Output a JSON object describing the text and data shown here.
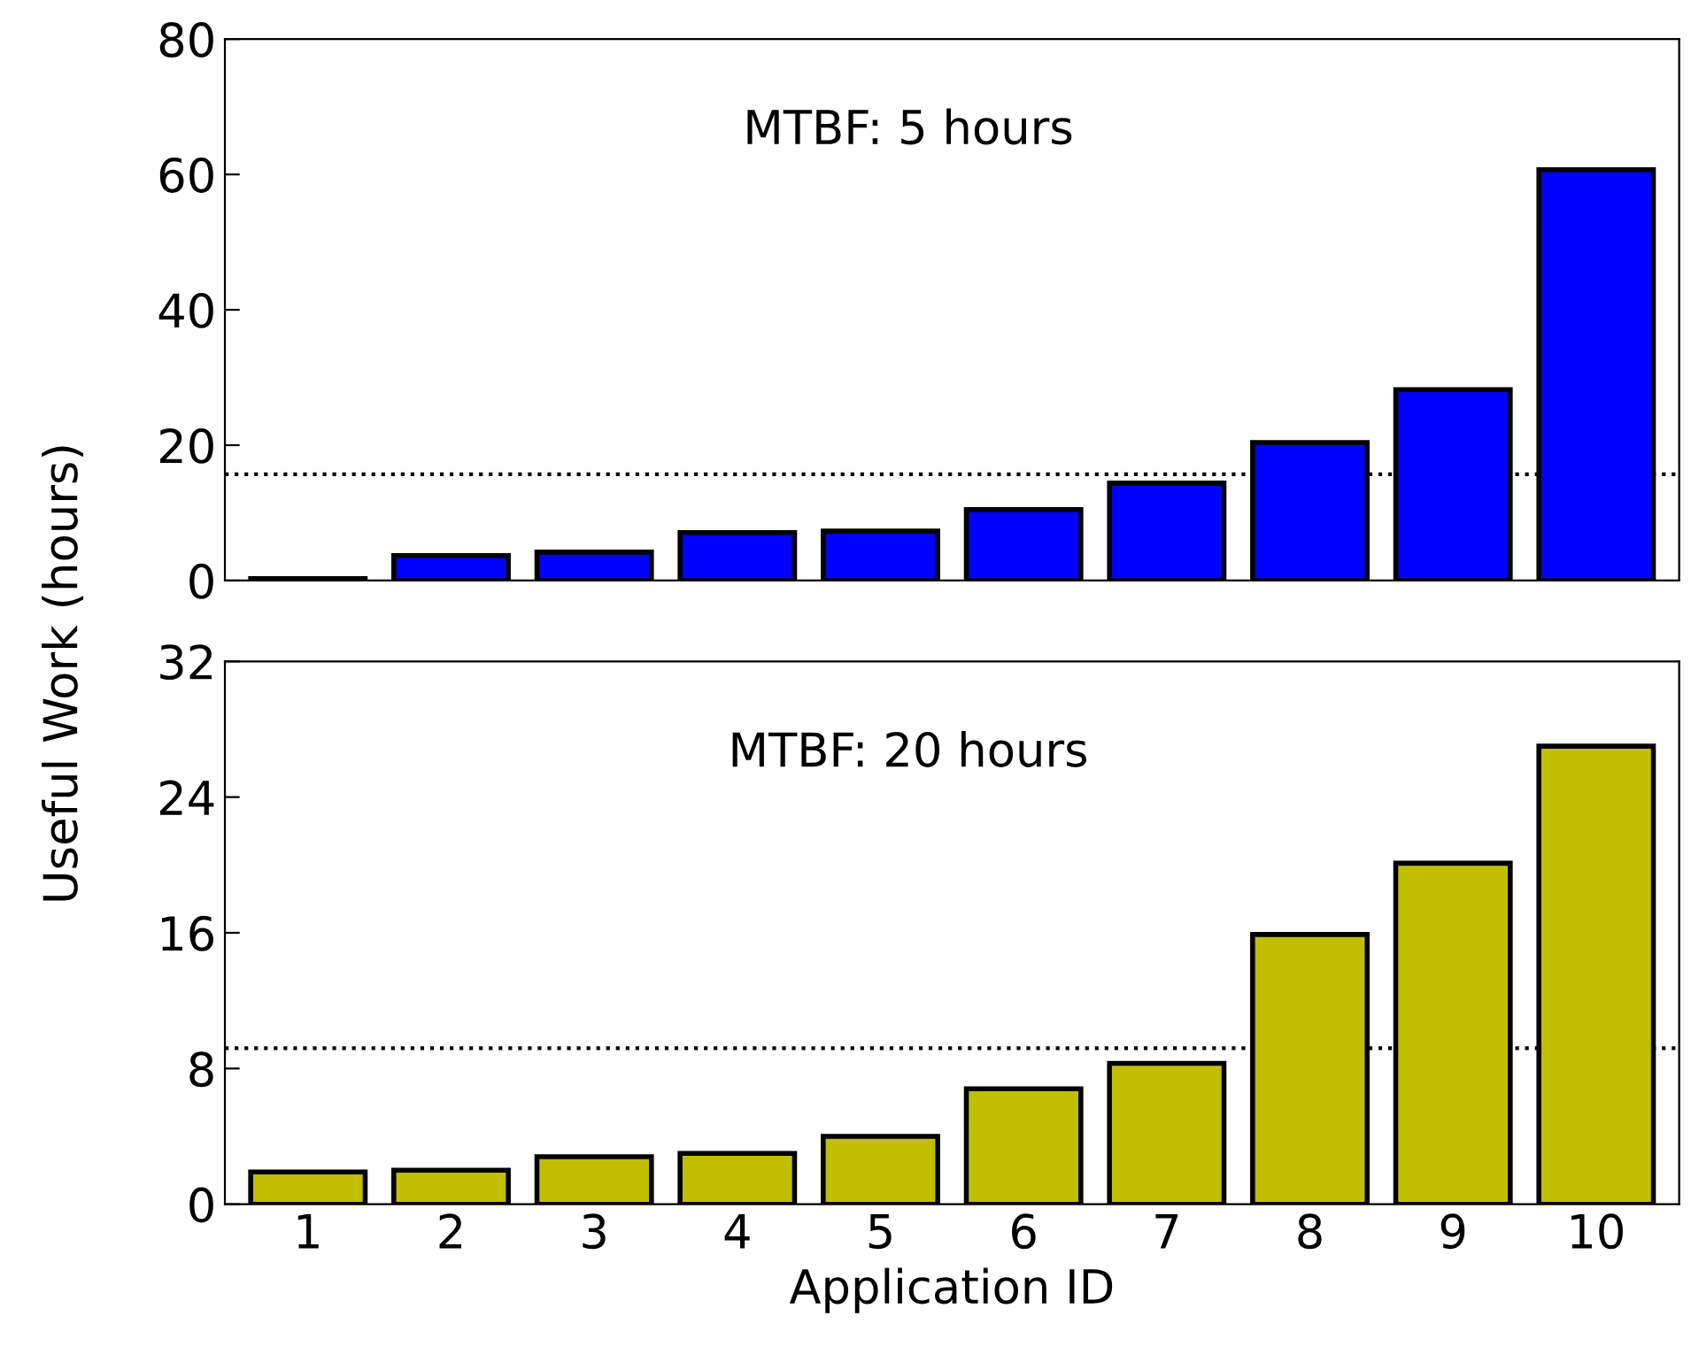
{
  "chart_data": [
    {
      "type": "bar",
      "ylabel": "Useful Work (hours)",
      "annotations": [
        "MTBF: 5 hours"
      ],
      "categories": [
        "1",
        "2",
        "3",
        "4",
        "5",
        "6",
        "7",
        "8",
        "9",
        "10"
      ],
      "values": [
        0.3,
        3.7,
        4.2,
        7.1,
        7.3,
        10.5,
        14.4,
        20.4,
        28.2,
        60.7
      ],
      "color": "#0000ff",
      "ylim": [
        0,
        80
      ],
      "yticks": [
        0,
        20,
        40,
        60,
        80
      ],
      "grid": false,
      "tick_labels": "y",
      "ref_lines": [
        {
          "axis": "y",
          "value": 15.7,
          "line_style": "dotted",
          "color": "#000000"
        }
      ]
    },
    {
      "type": "bar",
      "xlabel": "Application ID",
      "annotations": [
        "MTBF: 20 hours"
      ],
      "categories": [
        "1",
        "2",
        "3",
        "4",
        "5",
        "6",
        "7",
        "8",
        "9",
        "10"
      ],
      "values": [
        1.9,
        2.0,
        2.8,
        3.0,
        4.0,
        6.8,
        8.3,
        15.9,
        20.1,
        27.0
      ],
      "color": "#bfbf00",
      "ylim": [
        0,
        32
      ],
      "yticks": [
        0,
        8,
        16,
        24,
        32
      ],
      "grid": false,
      "ref_lines": [
        {
          "axis": "y",
          "value": 9.2,
          "line_style": "dotted",
          "color": "#000000"
        }
      ]
    }
  ]
}
